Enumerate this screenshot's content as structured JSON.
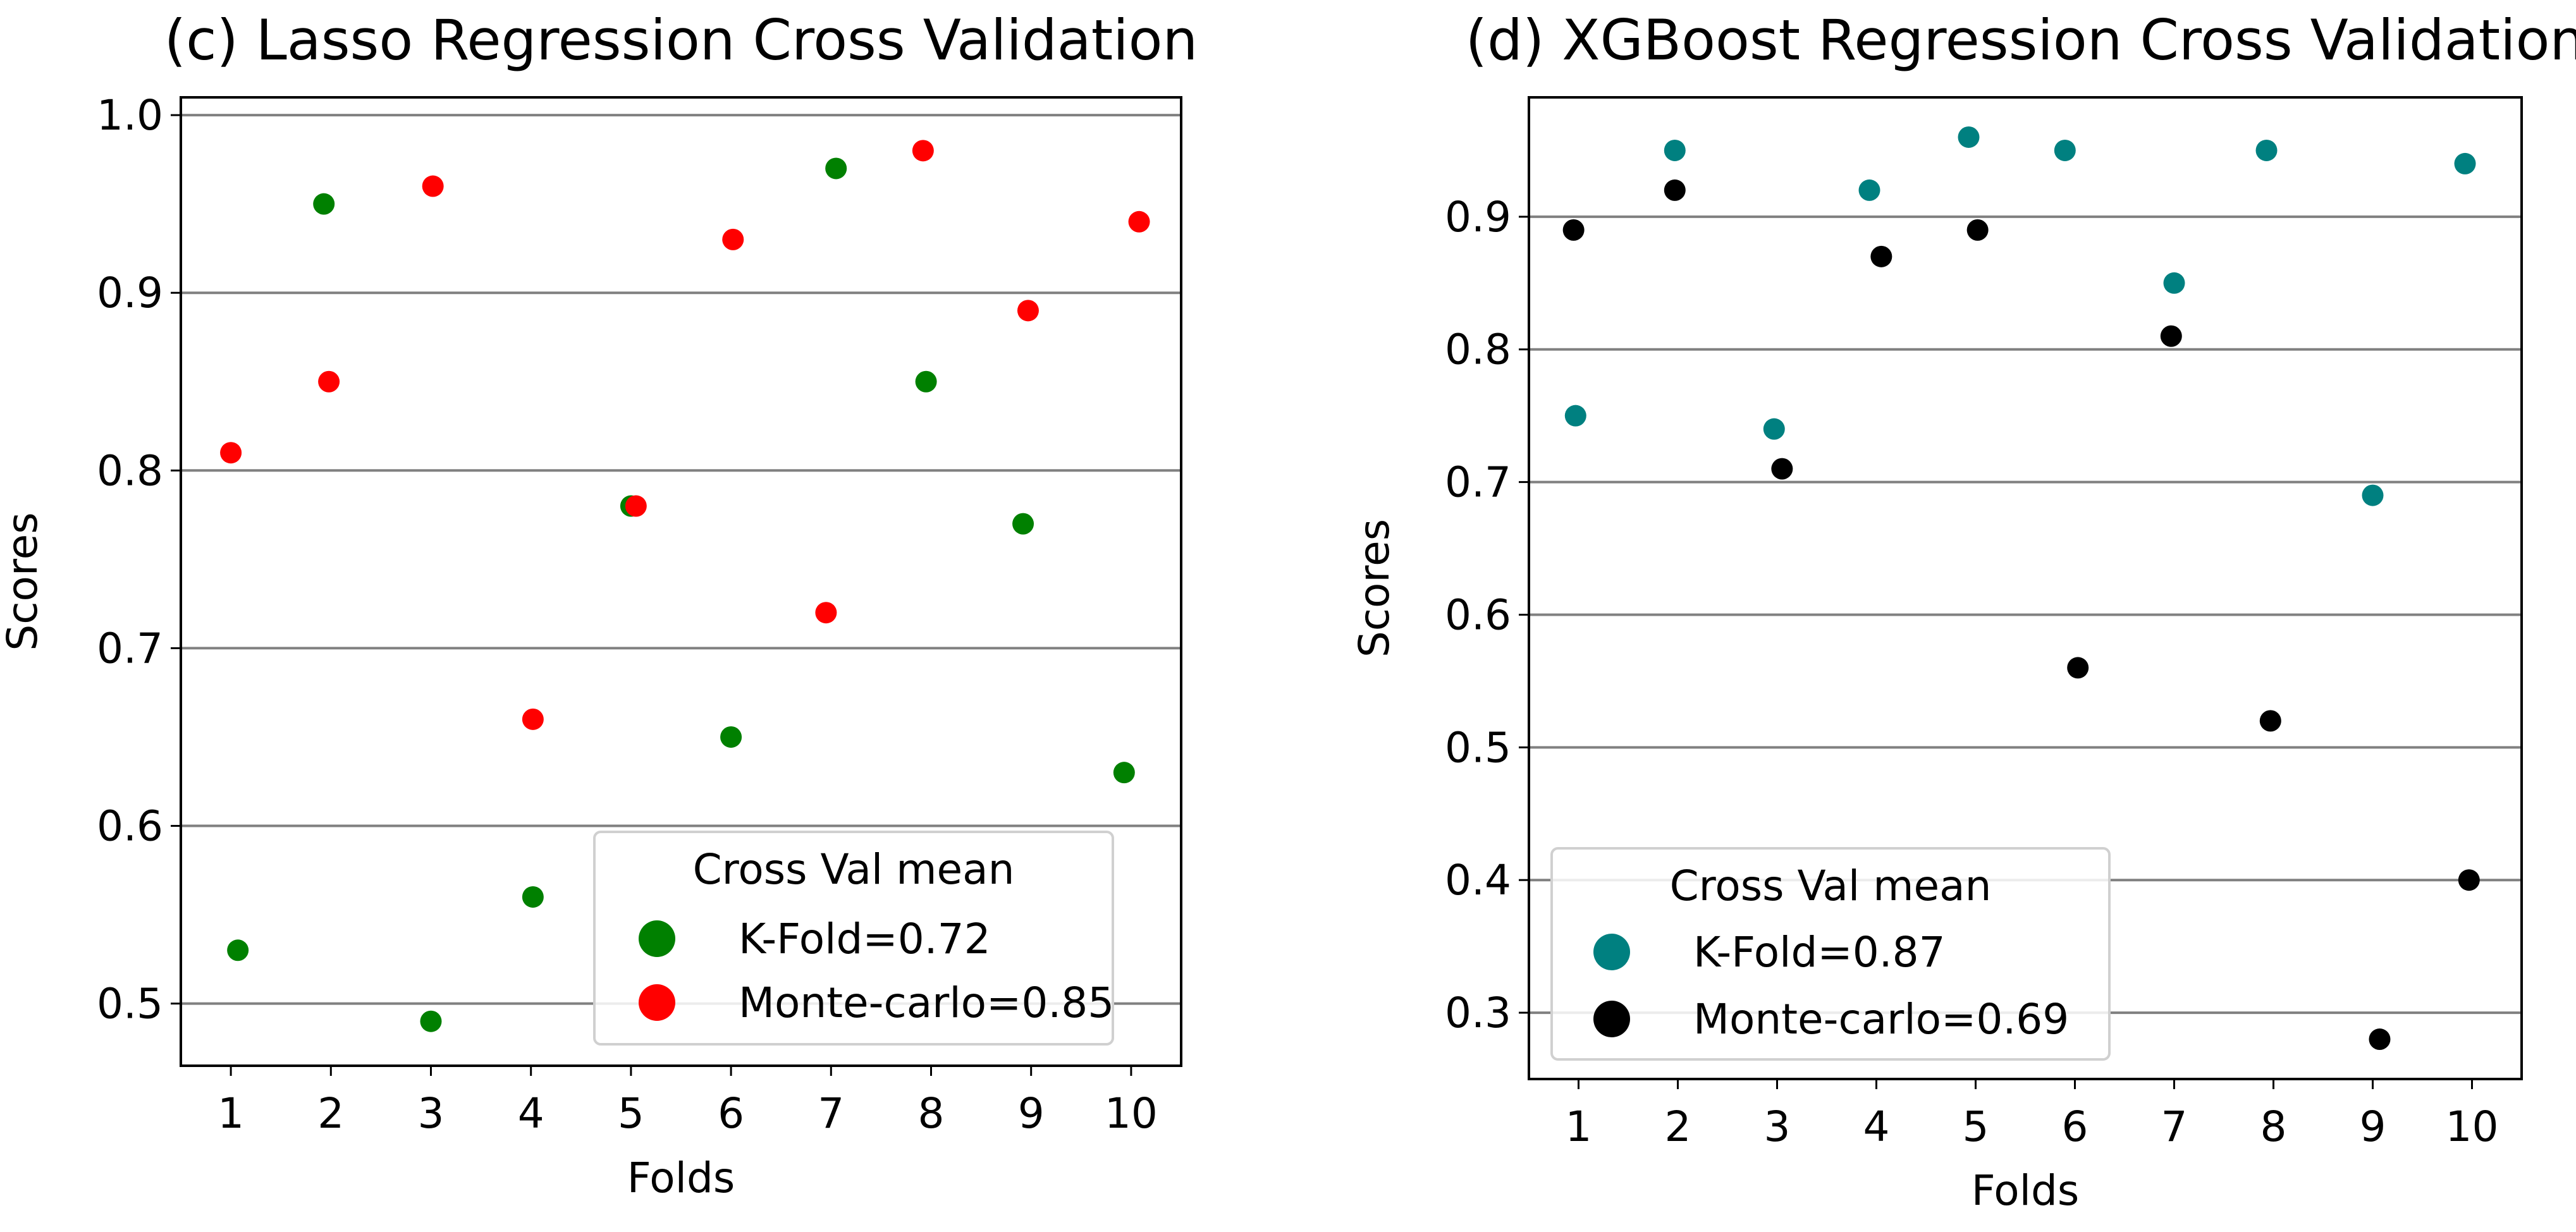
{
  "chart_data": [
    {
      "type": "scatter",
      "title": "(c) Lasso Regression Cross Validation",
      "xlabel": "Folds",
      "ylabel": "Scores",
      "xticks": [
        "1",
        "2",
        "3",
        "4",
        "5",
        "6",
        "7",
        "8",
        "9",
        "10"
      ],
      "yticks": [
        "0.5",
        "0.6",
        "0.7",
        "0.8",
        "0.9",
        "1.0"
      ],
      "xlim": [
        0.5,
        10.5
      ],
      "ylim": [
        0.465,
        1.01
      ],
      "grid": "horizontal",
      "legend": {
        "title": "Cross Val mean",
        "placement": "lower-right",
        "entries": [
          "K-Fold=0.72",
          "Monte-carlo=0.85"
        ]
      },
      "series": [
        {
          "name": "K-Fold=0.72",
          "color": "#008000",
          "x": [
            1.07,
            1.93,
            3.0,
            4.02,
            5.0,
            6.0,
            7.05,
            7.95,
            8.92,
            9.93
          ],
          "y": [
            0.53,
            0.95,
            0.49,
            0.56,
            0.78,
            0.65,
            0.97,
            0.85,
            0.77,
            0.63
          ]
        },
        {
          "name": "Monte-carlo=0.85",
          "color": "#ff0000",
          "x": [
            1.0,
            1.98,
            3.02,
            4.02,
            5.05,
            6.02,
            6.95,
            7.92,
            8.97,
            10.08
          ],
          "y": [
            0.81,
            0.85,
            0.96,
            0.66,
            0.78,
            0.93,
            0.72,
            0.98,
            0.89,
            0.94
          ]
        }
      ]
    },
    {
      "type": "scatter",
      "title": "(d) XGBoost Regression Cross Validation",
      "xlabel": "Folds",
      "ylabel": "Scores",
      "xticks": [
        "1",
        "2",
        "3",
        "4",
        "5",
        "6",
        "7",
        "8",
        "9",
        "10"
      ],
      "yticks": [
        "0.3",
        "0.4",
        "0.5",
        "0.6",
        "0.7",
        "0.8",
        "0.9"
      ],
      "xlim": [
        0.5,
        10.5
      ],
      "ylim": [
        0.25,
        0.99
      ],
      "grid": "horizontal",
      "legend": {
        "title": "Cross Val mean",
        "placement": "lower-left",
        "entries": [
          "K-Fold=0.87",
          "Monte-carlo=0.69"
        ]
      },
      "series": [
        {
          "name": "K-Fold=0.87",
          "color": "#008080",
          "x": [
            0.97,
            1.97,
            2.97,
            3.93,
            4.93,
            5.9,
            7.0,
            7.93,
            9.0,
            9.93
          ],
          "y": [
            0.75,
            0.95,
            0.74,
            0.92,
            0.96,
            0.95,
            0.85,
            0.95,
            0.69,
            0.94
          ]
        },
        {
          "name": "Monte-carlo=0.69",
          "color": "#000000",
          "x": [
            0.95,
            1.97,
            3.05,
            4.05,
            5.02,
            6.03,
            6.97,
            7.97,
            9.07,
            9.97
          ],
          "y": [
            0.89,
            0.92,
            0.71,
            0.87,
            0.89,
            0.56,
            0.81,
            0.52,
            0.28,
            0.4
          ]
        }
      ]
    }
  ]
}
